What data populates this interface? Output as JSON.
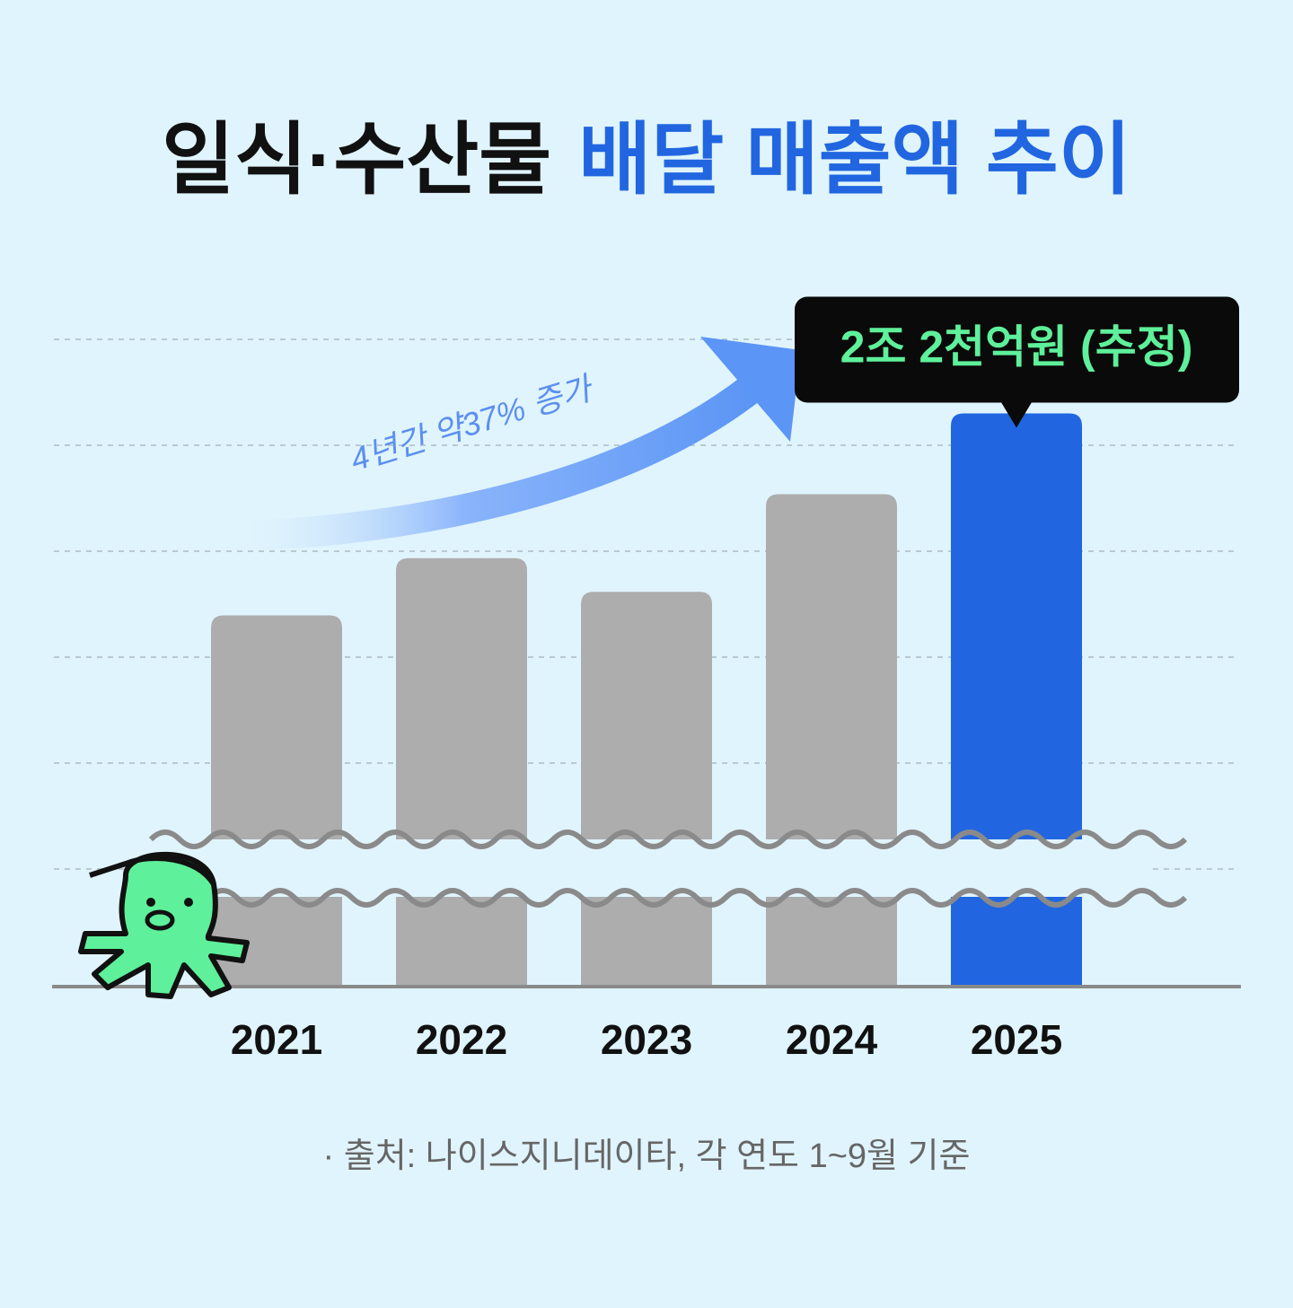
{
  "chart_data": {
    "type": "bar",
    "title_black": "일식·수산물",
    "title_blue": "배달 매출액 추이",
    "annotation": "4년간 약37% 증가",
    "categories": [
      "2021",
      "2022",
      "2023",
      "2024",
      "2025"
    ],
    "values": [
      1.6,
      1.77,
      1.67,
      1.96,
      2.2
    ],
    "value_labels": [
      null,
      null,
      null,
      null,
      "2조 2천억원 (추정)"
    ],
    "colors": [
      "#adadad",
      "#adadad",
      "#adadad",
      "#adadad",
      "#2166e0"
    ],
    "ylim": [
      0.5,
      2.5
    ],
    "axis_break": true,
    "source": "· 출처: 나이스지니데이타, 각 연도 1~9월 기준"
  }
}
